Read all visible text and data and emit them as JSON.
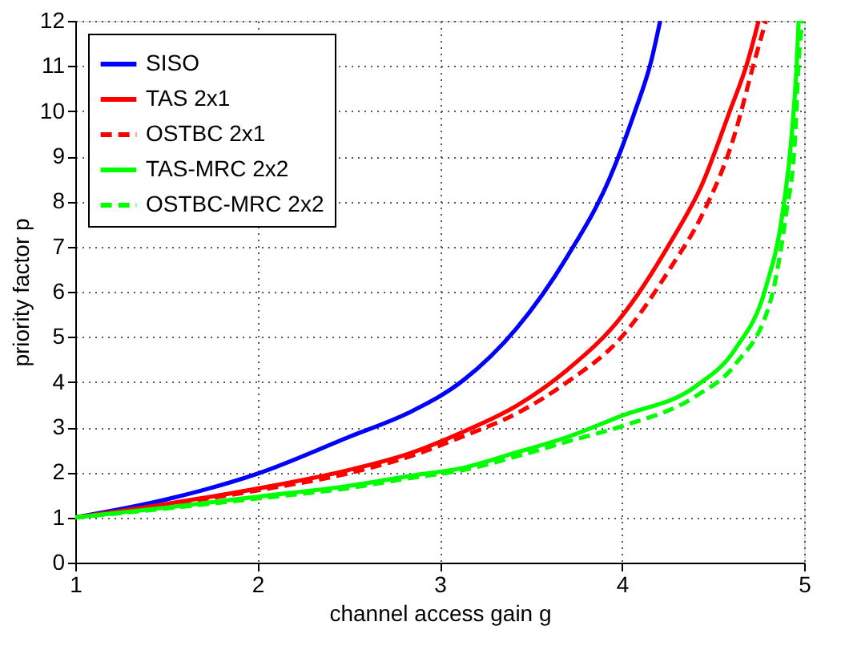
{
  "chart_data": {
    "type": "line",
    "xlabel": "channel access gain g",
    "ylabel": "priority factor p",
    "xlim": [
      1,
      5
    ],
    "ylim": [
      0,
      12
    ],
    "xticks": [
      1,
      2,
      3,
      4,
      5
    ],
    "yticks": [
      0,
      1,
      2,
      3,
      4,
      5,
      6,
      7,
      8,
      9,
      10,
      11,
      12
    ],
    "grid": true,
    "legend": "top left",
    "series": [
      {
        "name": "SISO",
        "color": "#0000ff",
        "line_style": "solid",
        "x": [
          1,
          1.5,
          2,
          2.5,
          2.85,
          3.13,
          3.42,
          3.7,
          3.93,
          4.07,
          4.16,
          4.21
        ],
        "values": [
          1,
          1.4,
          1.97,
          2.78,
          3.36,
          4.04,
          5.18,
          6.78,
          8.49,
          9.98,
          11.1,
          12
        ]
      },
      {
        "name": "TAS 2x1",
        "color": "#ff0000",
        "line_style": "solid",
        "x": [
          1,
          1.5,
          2,
          2.5,
          2.85,
          3.13,
          3.42,
          3.7,
          3.99,
          4.27,
          4.44,
          4.59,
          4.69,
          4.75
        ],
        "values": [
          1,
          1.3,
          1.64,
          2.05,
          2.44,
          2.9,
          3.47,
          4.27,
          5.41,
          7.12,
          8.38,
          9.98,
          11.1,
          12
        ]
      },
      {
        "name": "OSTBC 2x1",
        "color": "#ff0000",
        "line_style": "dashed",
        "x": [
          1,
          1.5,
          2,
          2.5,
          2.85,
          3.13,
          3.42,
          3.7,
          3.99,
          4.27,
          4.44,
          4.62,
          4.72,
          4.79
        ],
        "values": [
          1,
          1.28,
          1.6,
          1.98,
          2.37,
          2.8,
          3.3,
          4.0,
          4.96,
          6.55,
          7.7,
          9.5,
          11.0,
          12
        ]
      },
      {
        "name": "TAS-MRC 2x2",
        "color": "#00ff00",
        "line_style": "solid",
        "x": [
          1,
          1.5,
          2,
          2.5,
          2.85,
          3.13,
          3.42,
          3.7,
          3.99,
          4.41,
          4.62,
          4.79,
          4.88,
          4.93,
          4.96,
          4.97
        ],
        "values": [
          1,
          1.22,
          1.46,
          1.7,
          1.93,
          2.1,
          2.44,
          2.78,
          3.24,
          3.92,
          4.72,
          6.1,
          7.7,
          9.4,
          11.1,
          12
        ]
      },
      {
        "name": "OSTBC-MRC 2x2",
        "color": "#00ff00",
        "line_style": "dashed",
        "x": [
          1,
          1.5,
          2,
          2.5,
          2.85,
          3.13,
          3.42,
          3.7,
          3.99,
          4.41,
          4.62,
          4.82,
          4.9,
          4.95,
          4.97,
          4.99
        ],
        "values": [
          1,
          1.2,
          1.42,
          1.65,
          1.88,
          2.05,
          2.35,
          2.68,
          3.01,
          3.7,
          4.38,
          5.87,
          7.7,
          9.4,
          11.1,
          12
        ]
      }
    ]
  }
}
